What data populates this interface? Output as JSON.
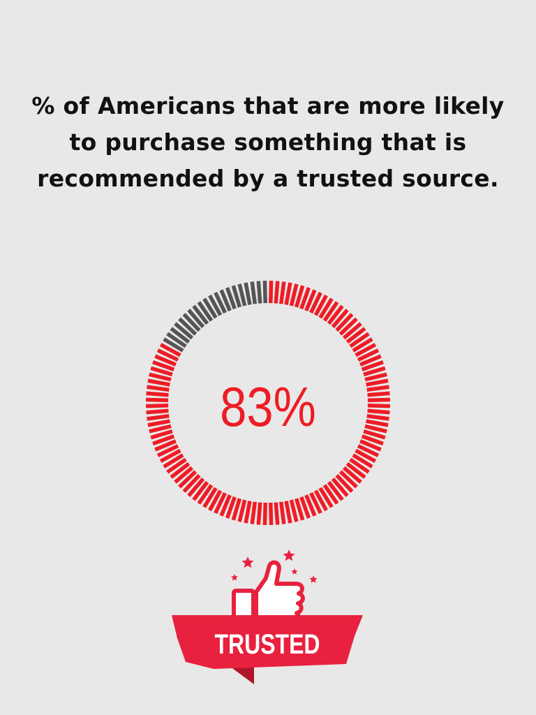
{
  "headline": {
    "line1": "% of Americans that are more likely",
    "line2": "to purchase something that is",
    "line3": "recommended by a trusted source."
  },
  "chart_data": {
    "type": "pie",
    "style": "segmented donut",
    "value_percent": 83,
    "center_label": "83%",
    "slices": [
      {
        "label": "",
        "value": 83,
        "color": "#ee1c25"
      },
      {
        "label": "",
        "value": 17,
        "color": "#555555"
      }
    ]
  },
  "badge": {
    "label": "TRUSTED",
    "icon": "thumbs-up-icon",
    "accent_color": "#e8213e",
    "dark_color": "#b0152c"
  },
  "colors": {
    "background": "#e9e8e8",
    "accent": "#ee1c25",
    "remainder": "#555555",
    "text": "#111111"
  }
}
